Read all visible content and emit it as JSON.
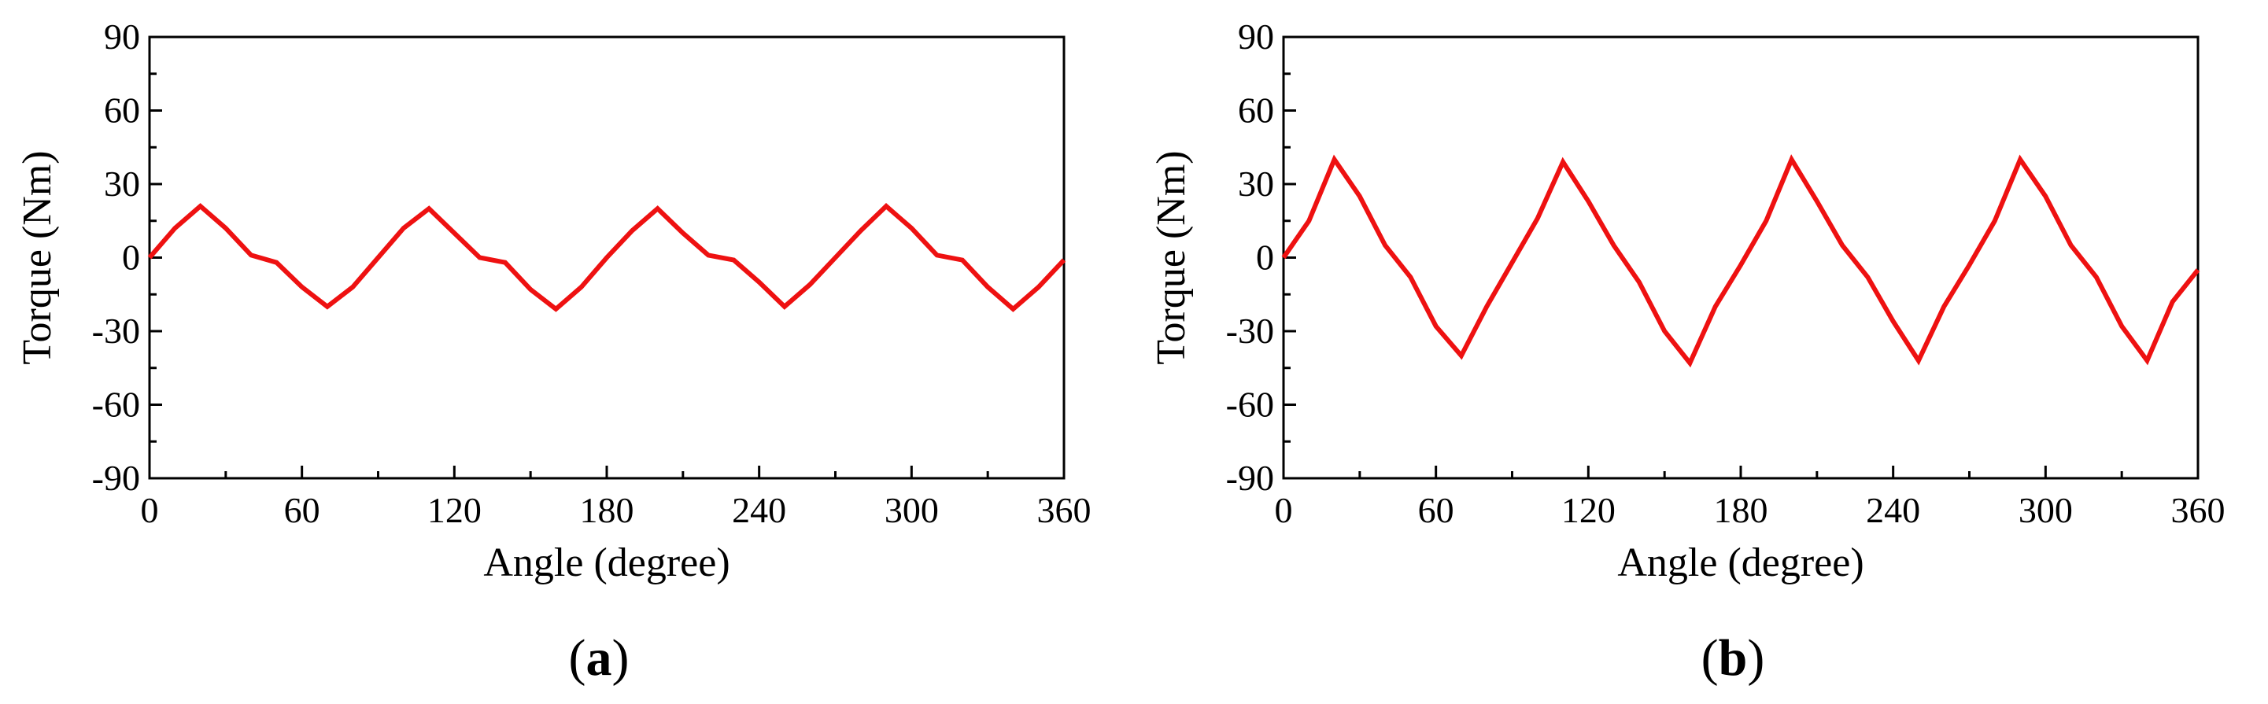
{
  "chart_data": [
    {
      "type": "line",
      "panel_label": "a",
      "xlabel": "Angle (degree)",
      "ylabel": "Torque (Nm)",
      "xlim": [
        0,
        360
      ],
      "ylim": [
        -90,
        90
      ],
      "xticks": [
        0,
        60,
        120,
        180,
        240,
        300,
        360
      ],
      "yticks": [
        90,
        60,
        30,
        0,
        -30,
        -60,
        -90
      ],
      "grid": false,
      "series": [
        {
          "color": "#ee1111",
          "x": [
            0,
            10,
            20,
            30,
            40,
            50,
            60,
            70,
            80,
            90,
            100,
            110,
            120,
            130,
            140,
            150,
            160,
            170,
            180,
            190,
            200,
            210,
            220,
            230,
            240,
            250,
            260,
            270,
            280,
            290,
            300,
            310,
            320,
            330,
            340,
            350,
            360
          ],
          "y": [
            0,
            12,
            21,
            12,
            1,
            -2,
            -12,
            -20,
            -12,
            0,
            12,
            20,
            10,
            0,
            -2,
            -13,
            -21,
            -12,
            0,
            11,
            20,
            10,
            1,
            -1,
            -10,
            -20,
            -11,
            0,
            11,
            21,
            12,
            1,
            -1,
            -12,
            -21,
            -12,
            -1
          ]
        }
      ]
    },
    {
      "type": "line",
      "panel_label": "b",
      "xlabel": "Angle (degree)",
      "ylabel": "Torque (Nm)",
      "xlim": [
        0,
        360
      ],
      "ylim": [
        -90,
        90
      ],
      "xticks": [
        0,
        60,
        120,
        180,
        240,
        300,
        360
      ],
      "yticks": [
        90,
        60,
        30,
        0,
        -30,
        -60,
        -90
      ],
      "grid": false,
      "series": [
        {
          "color": "#ee1111",
          "x": [
            0,
            10,
            20,
            30,
            40,
            50,
            60,
            70,
            80,
            90,
            100,
            110,
            120,
            130,
            140,
            150,
            160,
            170,
            180,
            190,
            200,
            210,
            220,
            230,
            240,
            250,
            260,
            270,
            280,
            290,
            300,
            310,
            320,
            330,
            340,
            350,
            360
          ],
          "y": [
            0,
            15,
            40,
            25,
            5,
            -8,
            -28,
            -40,
            -20,
            -2,
            16,
            39,
            23,
            5,
            -10,
            -30,
            -43,
            -20,
            -3,
            15,
            40,
            23,
            5,
            -8,
            -26,
            -42,
            -20,
            -3,
            15,
            40,
            25,
            5,
            -8,
            -28,
            -42,
            -18,
            -5
          ]
        }
      ]
    }
  ]
}
